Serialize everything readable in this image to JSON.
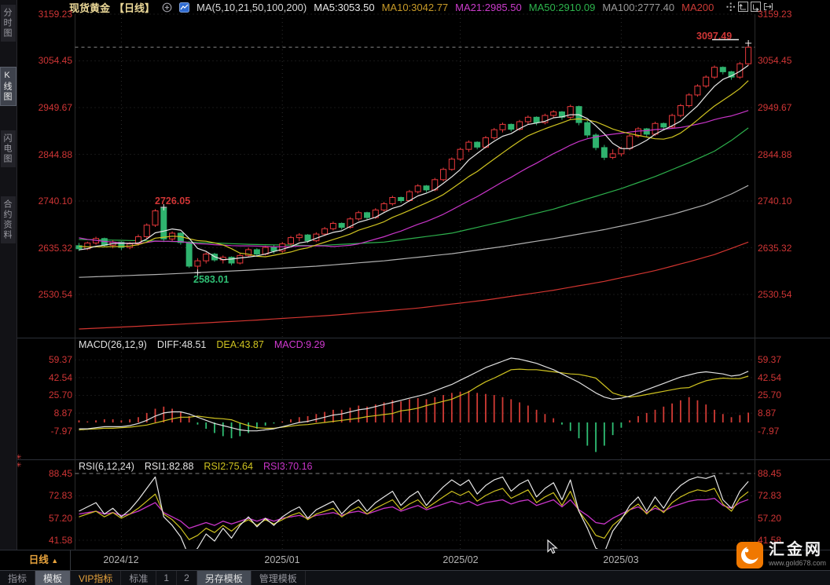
{
  "colors": {
    "up": "#e8393c",
    "down": "#2fb36e",
    "ma5": "#e8e8e8",
    "ma10": "#cfc320",
    "ma21": "#c835c8",
    "ma50": "#2db04c",
    "ma100": "#b0b0b0",
    "ma200": "#d23530",
    "axis_text": "#cf3535",
    "grid": "#2e2e2e",
    "month_grid": "#2e2e2e",
    "last_price_dash": "#8a8a8a",
    "diff": "#e0e0e0",
    "dea": "#cfc320",
    "macd_value": "#d23ad2",
    "hist_pos": "#d23b35",
    "hist_neg": "#2fbf74",
    "rsi1": "#e8e8e8",
    "rsi2": "#cfc320",
    "rsi3": "#c835c8",
    "accent_orange": "#e8a33c",
    "logo_orange": "#f07800",
    "annotation_red": "#cf3535",
    "annotation_green": "#2fbf74"
  },
  "sidebar": {
    "tabs": [
      {
        "label": "分时图",
        "selected": false
      },
      {
        "label": "K线图",
        "selected": true
      },
      {
        "label": "闪电图",
        "selected": false
      },
      {
        "label": "合约资料",
        "selected": false
      }
    ]
  },
  "header": {
    "title": "现货黄金",
    "period": "【日线】",
    "ma_config": "MA(5,10,21,50,100,200)",
    "ma_values": [
      {
        "label": "MA5:3053.50",
        "color": "#e8e8e8"
      },
      {
        "label": "MA10:3042.77",
        "color": "#c99b28"
      },
      {
        "label": "MA21:2985.50",
        "color": "#cc3ccc"
      },
      {
        "label": "MA50:2910.09",
        "color": "#2db54d"
      },
      {
        "label": "MA100:2777.40",
        "color": "#9a9a9a"
      },
      {
        "label": "MA200",
        "color": "#cc3b36"
      }
    ],
    "toolbar_icons": [
      "pan-crosshair",
      "zoom-axis-up",
      "zoom-axis-right",
      "exit-right"
    ]
  },
  "main_chart": {
    "axis": [
      "3159.23",
      "3054.45",
      "2949.67",
      "2844.88",
      "2740.10",
      "2635.32",
      "2530.54"
    ],
    "annotations": {
      "recent_high": "3097.49",
      "dec_high": "2726.05",
      "dec_low": "2583.01"
    }
  },
  "macd": {
    "header_label": "MACD(26,12,9)",
    "diff_label": "DIFF:48.51",
    "dea_label": "DEA:43.87",
    "macd_label": "MACD:9.29",
    "axis": [
      "59.37",
      "42.54",
      "25.70",
      "8.87",
      "-7.97"
    ]
  },
  "rsi": {
    "header_label": "RSI(6,12,24)",
    "rsi1_label": "RSI1:82.88",
    "rsi2_label": "RSI2:75.64",
    "rsi3_label": "RSI3:70.16",
    "axis": [
      "88.45",
      "72.83",
      "57.20",
      "41.58"
    ]
  },
  "timeline": {
    "period": "日线",
    "arrow": "▲",
    "dates": [
      "2024/12",
      "2025/01",
      "2025/02",
      "2025/03"
    ]
  },
  "bottom_tabs": [
    {
      "label": "指标"
    },
    {
      "label": "模板",
      "selected": true
    },
    {
      "label": "VIP指标",
      "vip": true
    },
    {
      "label": "标准"
    },
    {
      "label": "1"
    },
    {
      "label": "2"
    },
    {
      "label": "另存模板",
      "selected2": true
    },
    {
      "label": "管理模板"
    }
  ],
  "logo": {
    "name": "汇金网",
    "url": "www.gold678.com"
  },
  "chart_data": {
    "type": "candlestick+indicators",
    "x_axis_dates": [
      "2024/12",
      "2025/01",
      "2025/02",
      "2025/03"
    ],
    "month_start_indices": [
      5,
      24,
      45,
      64
    ],
    "last_close": 3085,
    "candles_ohlc": [
      [
        2640,
        2646,
        2628,
        2633
      ],
      [
        2633,
        2649,
        2630,
        2646
      ],
      [
        2646,
        2660,
        2642,
        2656
      ],
      [
        2656,
        2658,
        2636,
        2641
      ],
      [
        2641,
        2652,
        2634,
        2648
      ],
      [
        2648,
        2650,
        2630,
        2636
      ],
      [
        2636,
        2648,
        2632,
        2644
      ],
      [
        2644,
        2665,
        2640,
        2660
      ],
      [
        2660,
        2690,
        2656,
        2686
      ],
      [
        2686,
        2722,
        2682,
        2718
      ],
      [
        2724,
        2726.05,
        2648,
        2655
      ],
      [
        2655,
        2672,
        2650,
        2668
      ],
      [
        2668,
        2670,
        2642,
        2647
      ],
      [
        2647,
        2650,
        2590,
        2594
      ],
      [
        2594,
        2612,
        2583.01,
        2606
      ],
      [
        2606,
        2625,
        2600,
        2621
      ],
      [
        2621,
        2624,
        2604,
        2608
      ],
      [
        2608,
        2618,
        2600,
        2614
      ],
      [
        2614,
        2616,
        2596,
        2601
      ],
      [
        2601,
        2622,
        2598,
        2618
      ],
      [
        2618,
        2636,
        2614,
        2631
      ],
      [
        2631,
        2634,
        2616,
        2621
      ],
      [
        2621,
        2640,
        2618,
        2636
      ],
      [
        2636,
        2642,
        2622,
        2628
      ],
      [
        2628,
        2648,
        2624,
        2644
      ],
      [
        2644,
        2662,
        2640,
        2658
      ],
      [
        2658,
        2668,
        2650,
        2664
      ],
      [
        2664,
        2666,
        2646,
        2651
      ],
      [
        2651,
        2670,
        2648,
        2666
      ],
      [
        2666,
        2682,
        2662,
        2678
      ],
      [
        2678,
        2694,
        2674,
        2690
      ],
      [
        2690,
        2692,
        2676,
        2681
      ],
      [
        2681,
        2704,
        2678,
        2700
      ],
      [
        2700,
        2718,
        2696,
        2714
      ],
      [
        2714,
        2716,
        2698,
        2703
      ],
      [
        2703,
        2724,
        2700,
        2720
      ],
      [
        2720,
        2738,
        2716,
        2734
      ],
      [
        2734,
        2752,
        2730,
        2748
      ],
      [
        2748,
        2750,
        2736,
        2741
      ],
      [
        2741,
        2765,
        2738,
        2761
      ],
      [
        2761,
        2778,
        2757,
        2774
      ],
      [
        2774,
        2776,
        2760,
        2765
      ],
      [
        2765,
        2792,
        2762,
        2788
      ],
      [
        2788,
        2815,
        2784,
        2811
      ],
      [
        2811,
        2838,
        2808,
        2834
      ],
      [
        2834,
        2860,
        2830,
        2856
      ],
      [
        2856,
        2876,
        2850,
        2872
      ],
      [
        2872,
        2874,
        2856,
        2861
      ],
      [
        2861,
        2886,
        2858,
        2882
      ],
      [
        2882,
        2904,
        2878,
        2900
      ],
      [
        2900,
        2916,
        2894,
        2912
      ],
      [
        2912,
        2914,
        2896,
        2901
      ],
      [
        2901,
        2922,
        2898,
        2918
      ],
      [
        2918,
        2932,
        2912,
        2928
      ],
      [
        2928,
        2930,
        2910,
        2916
      ],
      [
        2916,
        2936,
        2912,
        2932
      ],
      [
        2932,
        2944,
        2926,
        2940
      ],
      [
        2940,
        2942,
        2922,
        2928
      ],
      [
        2928,
        2956.2,
        2924,
        2952
      ],
      [
        2952,
        2954,
        2910,
        2916
      ],
      [
        2916,
        2920,
        2882,
        2888
      ],
      [
        2888,
        2892,
        2854,
        2860
      ],
      [
        2860,
        2866,
        2832,
        2838
      ],
      [
        2838,
        2856,
        2834,
        2846
      ],
      [
        2846,
        2862,
        2840,
        2858
      ],
      [
        2858,
        2890,
        2854,
        2886
      ],
      [
        2886,
        2906,
        2882,
        2902
      ],
      [
        2902,
        2904,
        2884,
        2890
      ],
      [
        2890,
        2918,
        2886,
        2914
      ],
      [
        2914,
        2916,
        2900,
        2906
      ],
      [
        2906,
        2936,
        2902,
        2932
      ],
      [
        2932,
        2958,
        2928,
        2954
      ],
      [
        2954,
        2982,
        2950,
        2978
      ],
      [
        2978,
        3002,
        2974,
        2998
      ],
      [
        2998,
        3022,
        2994,
        3018
      ],
      [
        3018,
        3044,
        3014,
        3040
      ],
      [
        3040,
        3042,
        3024,
        3030
      ],
      [
        3030,
        3032,
        3012,
        3018
      ],
      [
        3018,
        3052,
        3014,
        3048
      ],
      [
        3048,
        3097.49,
        3044,
        3085
      ]
    ],
    "ma_seeds": {
      "ma5": [
        2632,
        2630,
        2628,
        2630
      ],
      "ma10": [
        2660,
        2652,
        2645,
        2640,
        2636,
        2632,
        2630,
        2628,
        2630
      ],
      "ma21": [
        2716,
        2705,
        2692,
        2680,
        2672,
        2665,
        2658,
        2650,
        2655,
        2662,
        2668,
        2660,
        2652,
        2645,
        2640,
        2636,
        2632,
        2630,
        2628,
        2630
      ]
    },
    "ma50_points": [
      [
        0,
        2654
      ],
      [
        10,
        2650
      ],
      [
        20,
        2643
      ],
      [
        28,
        2640
      ],
      [
        36,
        2648
      ],
      [
        44,
        2668
      ],
      [
        50,
        2694
      ],
      [
        56,
        2722
      ],
      [
        60,
        2745
      ],
      [
        64,
        2768
      ],
      [
        68,
        2795
      ],
      [
        72,
        2826
      ],
      [
        75,
        2852
      ],
      [
        77,
        2876
      ],
      [
        79,
        2904
      ]
    ],
    "ma100_points": [
      [
        0,
        2569
      ],
      [
        10,
        2576
      ],
      [
        20,
        2585
      ],
      [
        28,
        2594
      ],
      [
        36,
        2606
      ],
      [
        44,
        2622
      ],
      [
        50,
        2638
      ],
      [
        56,
        2656
      ],
      [
        62,
        2676
      ],
      [
        66,
        2692
      ],
      [
        70,
        2710
      ],
      [
        74,
        2732
      ],
      [
        77,
        2756
      ],
      [
        79,
        2775
      ]
    ],
    "ma200_points": [
      [
        0,
        2453
      ],
      [
        10,
        2462
      ],
      [
        20,
        2472
      ],
      [
        30,
        2484
      ],
      [
        40,
        2500
      ],
      [
        48,
        2518
      ],
      [
        56,
        2540
      ],
      [
        62,
        2560
      ],
      [
        68,
        2584
      ],
      [
        72,
        2604
      ],
      [
        75,
        2620
      ],
      [
        77,
        2634
      ],
      [
        79,
        2648
      ]
    ],
    "macd_diff": [
      -6,
      -6,
      -5,
      -4,
      -4,
      -4,
      -3,
      -1,
      2,
      6,
      9,
      10,
      10,
      8,
      5,
      2,
      -1,
      -3,
      -5,
      -7,
      -8,
      -8,
      -7,
      -6,
      -4,
      -2,
      0,
      1,
      3,
      5,
      7,
      8,
      10,
      12,
      13,
      15,
      17,
      19,
      21,
      23,
      25,
      27,
      30,
      33,
      36,
      40,
      44,
      48,
      52,
      55,
      58,
      61,
      60,
      58,
      56,
      53,
      50,
      46,
      42,
      38,
      33,
      28,
      24,
      22,
      23,
      25,
      28,
      31,
      34,
      37,
      40,
      43,
      45,
      47,
      48,
      47,
      46,
      44,
      45,
      48.51
    ],
    "macd_hist": [
      2,
      1,
      2,
      3,
      3,
      2,
      3,
      5,
      9,
      13,
      15,
      13,
      10,
      6,
      -2,
      -6,
      -10,
      -13,
      -15,
      -13,
      -10,
      -6,
      -3,
      -1,
      1,
      3,
      5,
      6,
      8,
      10,
      12,
      12,
      14,
      16,
      15,
      17,
      19,
      21,
      20,
      22,
      23,
      22,
      24,
      26,
      28,
      29,
      30,
      28,
      27,
      26,
      24,
      22,
      19,
      16,
      12,
      8,
      4,
      -2,
      -8,
      -15,
      -22,
      -28,
      -22,
      -12,
      -5,
      2,
      6,
      9,
      12,
      15,
      18,
      21,
      24,
      21,
      17,
      12,
      8,
      5,
      7,
      9.3
    ],
    "rsi1": [
      62,
      65,
      68,
      60,
      64,
      58,
      63,
      70,
      78,
      86,
      58,
      52,
      44,
      30,
      36,
      46,
      41,
      50,
      43,
      52,
      58,
      51,
      57,
      52,
      58,
      62,
      65,
      57,
      63,
      66,
      69,
      60,
      66,
      70,
      62,
      68,
      72,
      76,
      66,
      72,
      76,
      66,
      73,
      79,
      84,
      80,
      84,
      74,
      80,
      84,
      86,
      76,
      81,
      84,
      72,
      78,
      82,
      70,
      84,
      62,
      50,
      36,
      33,
      48,
      56,
      66,
      72,
      62,
      72,
      64,
      74,
      80,
      84,
      86,
      85,
      87,
      70,
      64,
      76,
      82.88
    ],
    "rsi2": [
      58,
      60,
      62,
      58,
      61,
      57,
      60,
      64,
      69,
      74,
      60,
      56,
      50,
      42,
      45,
      50,
      47,
      52,
      48,
      53,
      56,
      52,
      56,
      53,
      56,
      59,
      61,
      56,
      60,
      62,
      64,
      58,
      62,
      65,
      60,
      64,
      67,
      70,
      63,
      67,
      70,
      64,
      68,
      72,
      76,
      73,
      76,
      69,
      73,
      76,
      78,
      71,
      74,
      77,
      68,
      72,
      75,
      66,
      76,
      62,
      54,
      45,
      43,
      52,
      57,
      63,
      67,
      60,
      66,
      61,
      68,
      72,
      75,
      77,
      76,
      78,
      67,
      62,
      71,
      75.64
    ],
    "rsi3": [
      60,
      61,
      62,
      60,
      61,
      59,
      60,
      62,
      65,
      68,
      61,
      58,
      55,
      50,
      52,
      54,
      52,
      55,
      53,
      55,
      57,
      55,
      57,
      55,
      57,
      58,
      59,
      57,
      59,
      60,
      61,
      59,
      61,
      62,
      60,
      62,
      64,
      65,
      62,
      64,
      66,
      63,
      65,
      67,
      69,
      67,
      69,
      66,
      68,
      69,
      70,
      67,
      69,
      70,
      66,
      68,
      70,
      65,
      70,
      63,
      59,
      54,
      53,
      57,
      60,
      63,
      65,
      61,
      64,
      62,
      65,
      67,
      69,
      70,
      70,
      71,
      66,
      64,
      68,
      70.16
    ]
  }
}
